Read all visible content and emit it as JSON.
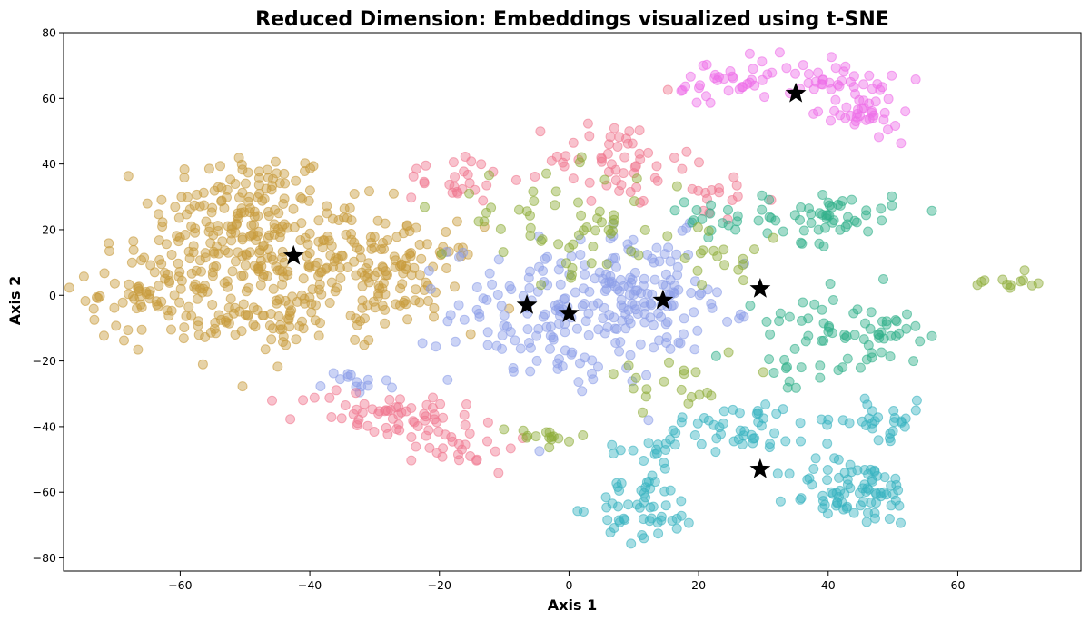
{
  "chart_data": {
    "type": "scatter",
    "title": "Reduced Dimension: Embeddings visualized using t-SNE",
    "xlabel": "Axis 1",
    "ylabel": "Axis 2",
    "xlim": [
      -78,
      79
    ],
    "ylim": [
      -84,
      80
    ],
    "xticks": [
      -60,
      -40,
      -20,
      0,
      20,
      40,
      60
    ],
    "yticks": [
      -80,
      -60,
      -40,
      -20,
      0,
      20,
      40,
      60,
      80
    ],
    "grid": false,
    "legend": "none",
    "marker_opacity": 0.45,
    "series": [
      {
        "color": "#c89b3c",
        "clusters": [
          {
            "cx": -50,
            "cy": 25,
            "sx": 7,
            "sy": 10,
            "n": 150
          },
          {
            "cx": -38,
            "cy": 10,
            "sx": 8,
            "sy": 9,
            "n": 130
          },
          {
            "cx": -62,
            "cy": 2,
            "sx": 6,
            "sy": 8,
            "n": 110
          },
          {
            "cx": -26,
            "cy": 5,
            "sx": 6,
            "sy": 8,
            "n": 80
          },
          {
            "cx": -45,
            "cy": -8,
            "sx": 7,
            "sy": 5,
            "n": 60
          }
        ]
      },
      {
        "color": "#8c9ee8",
        "clusters": [
          {
            "cx": 0,
            "cy": -5,
            "sx": 9,
            "sy": 11,
            "n": 180
          },
          {
            "cx": 13,
            "cy": 0,
            "sx": 6,
            "sy": 9,
            "n": 80
          },
          {
            "cx": -34,
            "cy": -28,
            "sx": 3,
            "sy": 3,
            "n": 14
          }
        ]
      },
      {
        "color": "#f07890",
        "clusters": [
          {
            "cx": -28,
            "cy": -36,
            "sx": 7,
            "sy": 4,
            "n": 60
          },
          {
            "cx": -16,
            "cy": -46,
            "sx": 4,
            "sy": 4,
            "n": 25
          },
          {
            "cx": 7,
            "cy": 42,
            "sx": 5,
            "sy": 6,
            "n": 50
          },
          {
            "cx": -17,
            "cy": 36,
            "sx": 4,
            "sy": 4,
            "n": 25
          },
          {
            "cx": 22,
            "cy": 30,
            "sx": 4,
            "sy": 6,
            "n": 20
          }
        ]
      },
      {
        "color": "#38b3c0",
        "clusters": [
          {
            "cx": 44,
            "cy": -60,
            "sx": 5,
            "sy": 5,
            "n": 80
          },
          {
            "cx": 12,
            "cy": -65,
            "sx": 4,
            "sy": 5,
            "n": 50
          },
          {
            "cx": 26,
            "cy": -40,
            "sx": 6,
            "sy": 4,
            "n": 45
          },
          {
            "cx": 48,
            "cy": -38,
            "sx": 4,
            "sy": 3,
            "n": 30
          },
          {
            "cx": 12,
            "cy": -48,
            "sx": 3,
            "sy": 3,
            "n": 15
          }
        ]
      },
      {
        "color": "#30b08a",
        "clusters": [
          {
            "cx": 40,
            "cy": 24,
            "sx": 5,
            "sy": 4,
            "n": 50
          },
          {
            "cx": 42,
            "cy": -8,
            "sx": 6,
            "sy": 5,
            "n": 40
          },
          {
            "cx": 50,
            "cy": -12,
            "sx": 4,
            "sy": 3,
            "n": 20
          },
          {
            "cx": 22,
            "cy": 22,
            "sx": 4,
            "sy": 3,
            "n": 18
          },
          {
            "cx": 36,
            "cy": -22,
            "sx": 4,
            "sy": 4,
            "n": 15
          }
        ]
      },
      {
        "color": "#8fae3a",
        "clusters": [
          {
            "cx": 0,
            "cy": 22,
            "sx": 10,
            "sy": 8,
            "n": 60
          },
          {
            "cx": -5,
            "cy": -44,
            "sx": 4,
            "sy": 2,
            "n": 15
          },
          {
            "cx": 68,
            "cy": 4,
            "sx": 3,
            "sy": 2,
            "n": 12
          },
          {
            "cx": 26,
            "cy": 12,
            "sx": 4,
            "sy": 5,
            "n": 15
          },
          {
            "cx": 15,
            "cy": -25,
            "sx": 6,
            "sy": 6,
            "n": 20
          }
        ]
      },
      {
        "color": "#ee6ee8",
        "clusters": [
          {
            "cx": 45,
            "cy": 55,
            "sx": 3,
            "sy": 3,
            "n": 35
          },
          {
            "cx": 42,
            "cy": 66,
            "sx": 4,
            "sy": 3,
            "n": 35
          },
          {
            "cx": 25,
            "cy": 64,
            "sx": 5,
            "sy": 4,
            "n": 35
          }
        ]
      }
    ],
    "centroids": [
      {
        "x": -42.5,
        "y": 12
      },
      {
        "x": -6.5,
        "y": -3
      },
      {
        "x": 0,
        "y": -5.5
      },
      {
        "x": 14.5,
        "y": -1.5
      },
      {
        "x": 29.5,
        "y": 2
      },
      {
        "x": 35,
        "y": 61.5
      },
      {
        "x": 29.5,
        "y": -53
      }
    ]
  }
}
